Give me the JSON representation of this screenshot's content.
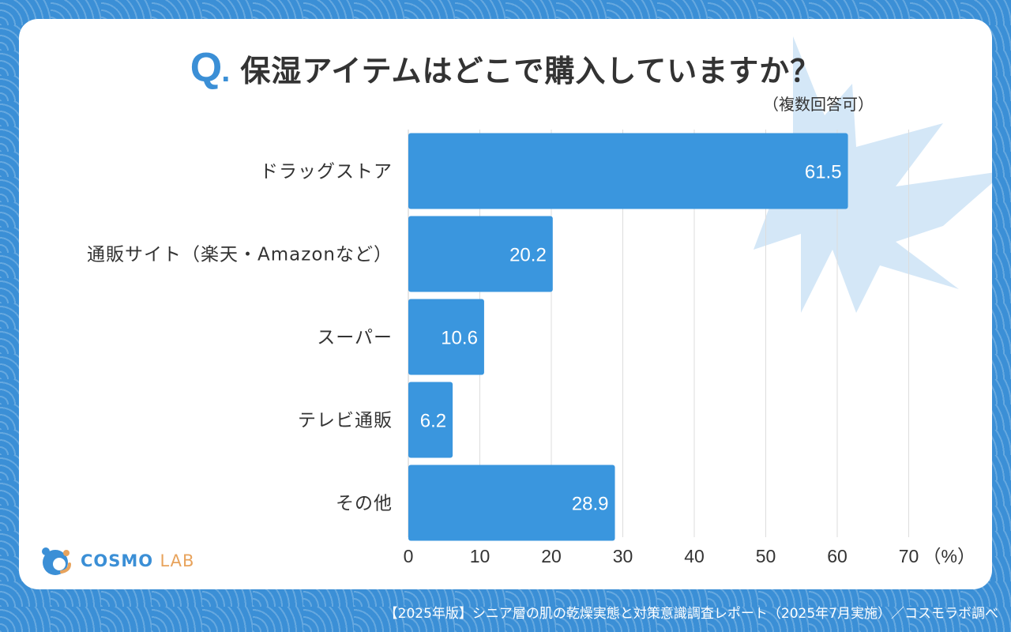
{
  "header": {
    "q_letter": "Q",
    "q_dot": ".",
    "title": "保湿アイテムはどこで購入していますか？",
    "note": "（複数回答可）"
  },
  "chart_data": {
    "type": "bar",
    "orientation": "horizontal",
    "categories": [
      "ドラッグストア",
      "通販サイト（楽天・Amazonなど）",
      "スーパー",
      "テレビ通販",
      "その他"
    ],
    "values": [
      61.5,
      20.2,
      10.6,
      6.2,
      28.9
    ],
    "value_labels": [
      "61.5",
      "20.2",
      "10.6",
      "6.2",
      "28.9"
    ],
    "xlim": [
      0,
      70
    ],
    "xticks": [
      "0",
      "10",
      "20",
      "30",
      "40",
      "50",
      "60",
      "70"
    ],
    "x_unit": "（%）",
    "bar_color": "#3a96de",
    "grid": true
  },
  "logo": {
    "text_main": "COSMO",
    "text_sub": "LAB",
    "icon": "cosmo-lab-logo-icon"
  },
  "footer": {
    "text": "【2025年版】シニア層の肌の乾燥実態と対策意識調査レポート（2025年7月実施）／コスモラボ調べ"
  },
  "colors": {
    "background": "#3b8fd6",
    "accent": "#3b8fd6",
    "text": "#333333",
    "leaf": "#cfe4f6",
    "logo_orange": "#e8a35c"
  }
}
